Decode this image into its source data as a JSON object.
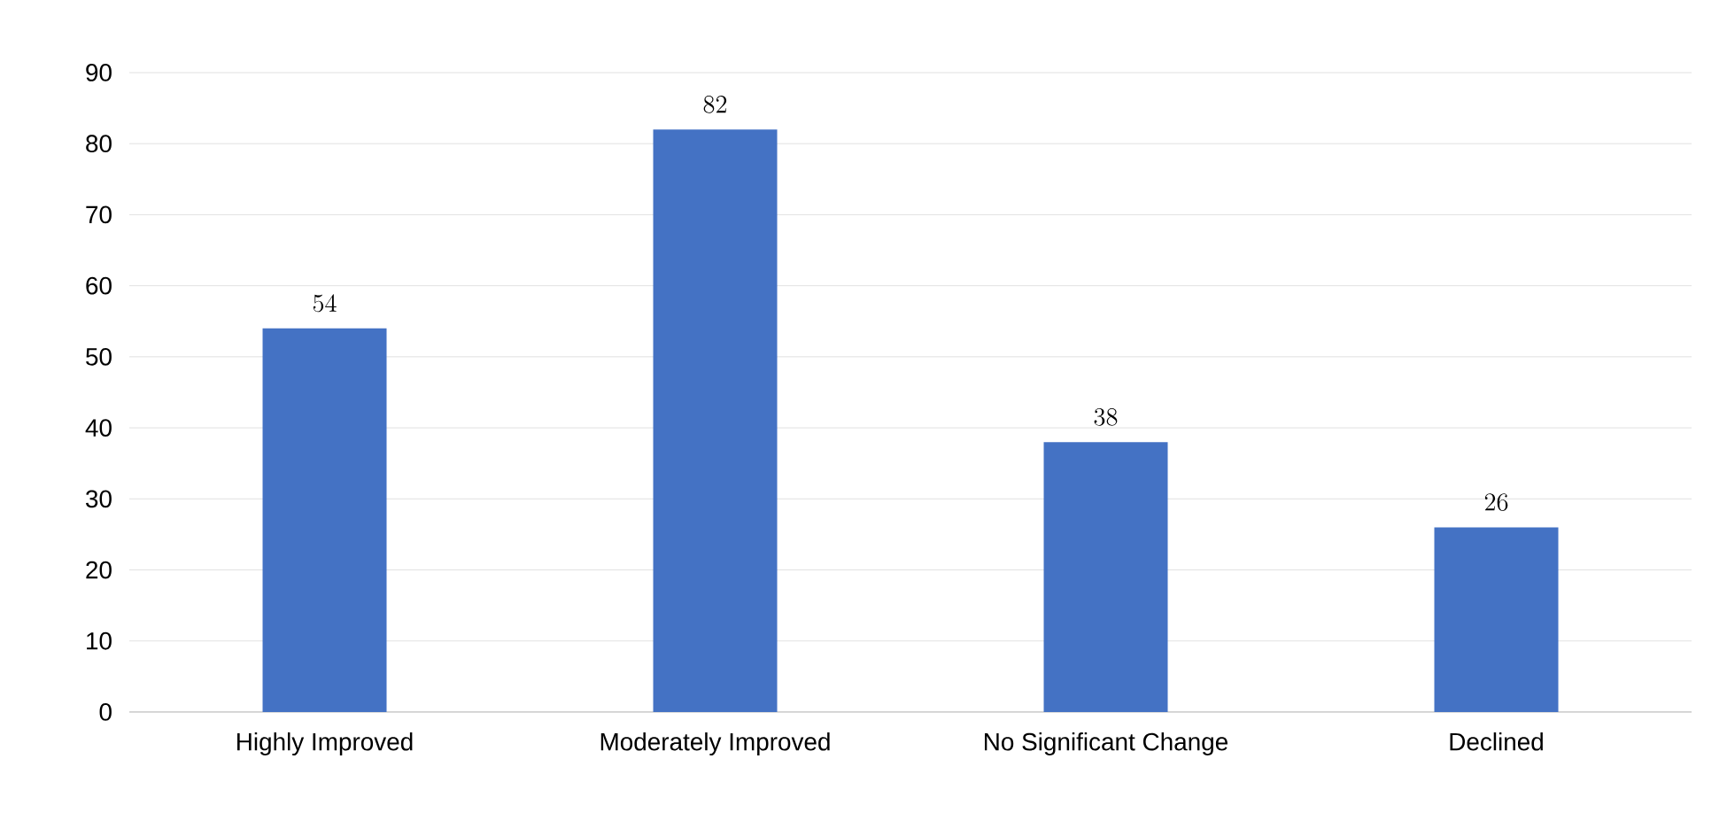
{
  "chart_data": {
    "type": "bar",
    "categories": [
      "Highly Improved",
      "Moderately Improved",
      "No Significant Change",
      "Declined"
    ],
    "values": [
      54,
      82,
      38,
      26
    ],
    "color": "#4472c4",
    "ylim": [
      0,
      90
    ],
    "yticks": [
      0,
      10,
      20,
      30,
      40,
      50,
      60,
      70,
      80,
      90
    ],
    "grid": "y",
    "data_labels": true
  }
}
